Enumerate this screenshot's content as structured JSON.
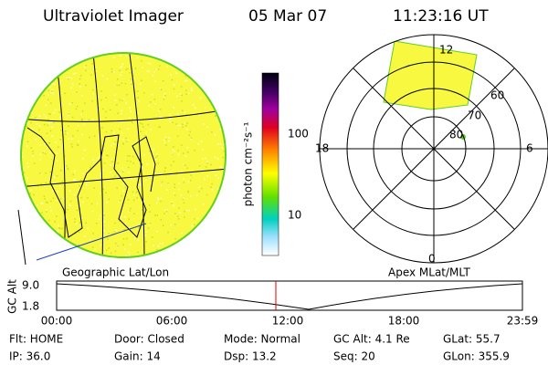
{
  "header": {
    "instrument": "Ultraviolet Imager",
    "date": "05 Mar 07",
    "time": "11:23:16 UT"
  },
  "colorbar": {
    "label": "photon cm⁻²s⁻¹",
    "ticks": [
      "100",
      "10"
    ]
  },
  "image_labels": {
    "left": "Geographic Lat/Lon",
    "right": "Apex MLat/MLT"
  },
  "polar": {
    "mlt": [
      "12",
      "18",
      "6",
      "0"
    ],
    "mlat": [
      "60",
      "70",
      "80"
    ]
  },
  "timeline": {
    "ylabel": "GC Alt",
    "yticks": [
      "9.0",
      "1.8"
    ],
    "xticks": [
      "00:00",
      "06:00",
      "12:00",
      "18:00",
      "23:59"
    ]
  },
  "status": {
    "rows": [
      [
        "Flt: HOME",
        "Door: Closed",
        "Mode: Normal",
        "GC Alt: 4.1 Re",
        "GLat: 55.7"
      ],
      [
        "IP: 36.0",
        "Gain: 14",
        "Dsp: 13.2",
        "Seq: 20",
        "GLon: 355.9"
      ]
    ]
  }
}
